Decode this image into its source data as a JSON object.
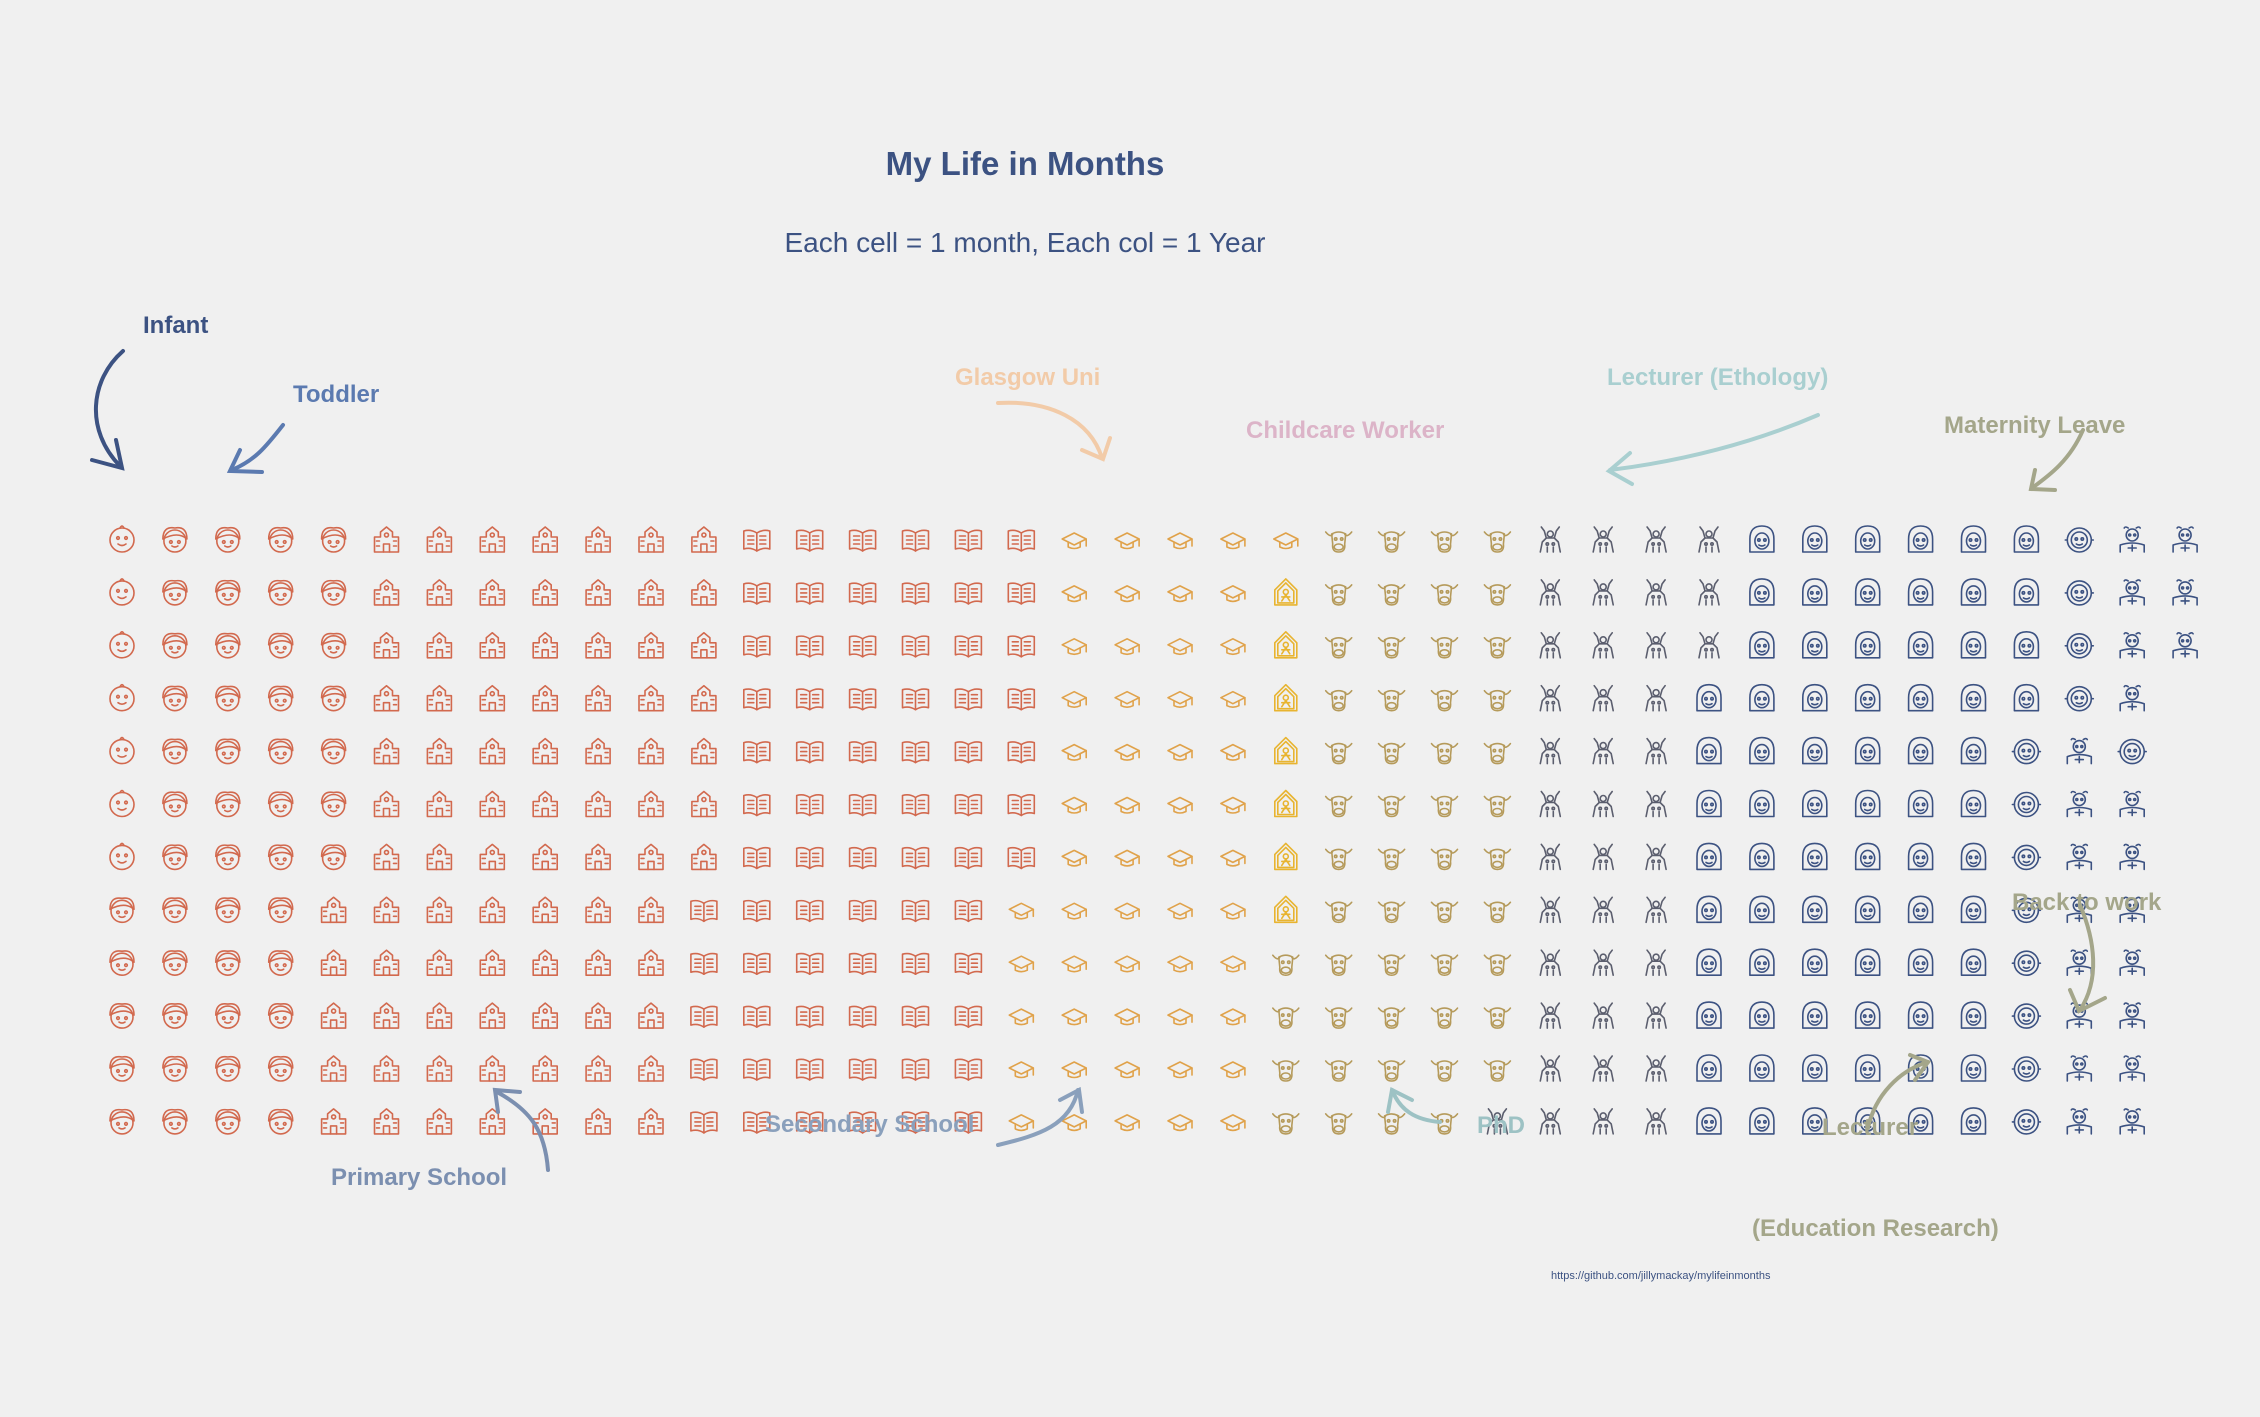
{
  "chart_data": {
    "type": "waffle",
    "title": "My Life in Months",
    "subtitle": "Each cell = 1 month, Each col = 1 Year",
    "source": "https://github.com/jillymackay/mylifeinmonths",
    "rows_per_column": 12,
    "stages": [
      {
        "name": "Infant",
        "months": 7,
        "icon": "baby-face-icon",
        "color": "#d2694e"
      },
      {
        "name": "Toddler",
        "months": 48,
        "icon": "child-face-icon",
        "color": "#d2694e"
      },
      {
        "name": "Primary School",
        "months": 84,
        "icon": "school-building-icon",
        "color": "#d2694e"
      },
      {
        "name": "Secondary School",
        "months": 72,
        "icon": "open-book-icon",
        "color": "#d2694e"
      },
      {
        "name": "Glasgow Uni",
        "months": 54,
        "icon": "graduation-cap-icon",
        "color": "#e0a24a"
      },
      {
        "name": "Childcare Worker",
        "months": 7,
        "icon": "house-child-icon",
        "color": "#e8b430"
      },
      {
        "name": "PhD",
        "months": 51,
        "icon": "cow-face-icon",
        "color": "#b59a5a"
      },
      {
        "name": "Lecturer (Ethology)",
        "months": 40,
        "icon": "animal-icon",
        "color": "#5b5e6e"
      },
      {
        "name": "Lecturer (Education Research)",
        "months": 73,
        "icon": "lecturer-face-icon",
        "color": "#3c5282"
      },
      {
        "name": "Maternity Leave",
        "months": 12,
        "icon": "baby-round-icon",
        "color": "#3c5282"
      },
      {
        "name": "Back to work",
        "months": 12,
        "icon": "worker-icon",
        "color": "#3c5282"
      },
      {
        "name": "Back to work",
        "months": 1,
        "icon": "baby-round-icon",
        "color": "#3c5282"
      },
      {
        "name": "Back to work",
        "months": 10,
        "icon": "worker-icon",
        "color": "#3c5282"
      }
    ],
    "annotations": [
      {
        "text": "Infant",
        "color": "#3c5282"
      },
      {
        "text": "Toddler",
        "color": "#5b7ab0"
      },
      {
        "text": "Primary School",
        "color": "#7b8fb0"
      },
      {
        "text": "Secondary School",
        "color": "#8aa0bc"
      },
      {
        "text": "Glasgow Uni",
        "color": "#f2cba8"
      },
      {
        "text": "Childcare Worker",
        "color": "#dcb4c8"
      },
      {
        "text": "PhD",
        "color": "#9dc2c4"
      },
      {
        "text": "Lecturer (Ethology)",
        "color": "#a9cfd0"
      },
      {
        "text": "Maternity Leave",
        "color": "#a4a68a"
      },
      {
        "text": "Back to work",
        "color": "#a4a68a"
      },
      {
        "text": "Lecturer",
        "color": "#a4a68a"
      },
      {
        "text": "(Education Research)",
        "color": "#a4a68a"
      }
    ]
  }
}
